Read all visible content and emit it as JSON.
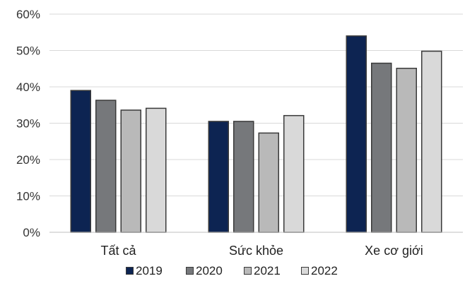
{
  "chart_data": {
    "type": "bar",
    "categories": [
      "Tất cả",
      "Sức khỏe",
      "Xe cơ giới"
    ],
    "series": [
      {
        "name": "2019",
        "values": [
          39,
          30.5,
          54
        ],
        "color": "#0d2452"
      },
      {
        "name": "2020",
        "values": [
          36.3,
          30.5,
          46.5
        ],
        "color": "#76787b"
      },
      {
        "name": "2021",
        "values": [
          33.6,
          27.3,
          45.1
        ],
        "color": "#b9b9b9"
      },
      {
        "name": "2022",
        "values": [
          34.1,
          32.1,
          49.8
        ],
        "color": "#d9d9d9"
      }
    ],
    "y_ticks": [
      "0%",
      "10%",
      "20%",
      "30%",
      "40%",
      "50%",
      "60%"
    ],
    "ylim": [
      0,
      60
    ],
    "grid": true,
    "legend_position": "bottom",
    "title": "",
    "xlabel": "",
    "ylabel": ""
  }
}
